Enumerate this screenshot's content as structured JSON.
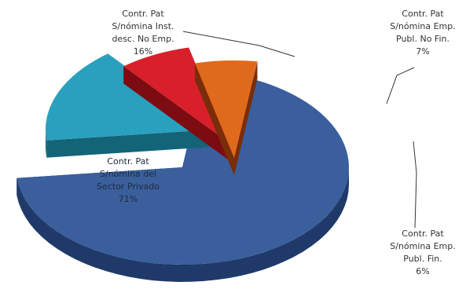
{
  "chart_data": {
    "type": "pie",
    "style": "3d-exploded",
    "title": "",
    "slices": [
      {
        "label_lines": [
          "Contr. Pat",
          "S/nómina del",
          "Sector Privado"
        ],
        "value": 71,
        "value_text": "71%",
        "color": "#3a5f9c",
        "side": "#1f3a69"
      },
      {
        "label_lines": [
          "Contr. Pat",
          "S/nómina Inst.",
          "desc. No Emp."
        ],
        "value": 16,
        "value_text": "16%",
        "color": "#2aa0bf",
        "side": "#146478"
      },
      {
        "label_lines": [
          "Contr. Pat",
          "S/nómina Emp.",
          "Publ. No Fin."
        ],
        "value": 7,
        "value_text": "7%",
        "color": "#d8202b",
        "side": "#7d0b12"
      },
      {
        "label_lines": [
          "Contr. Pat",
          "S/nómina Emp.",
          "Publ. Fin."
        ],
        "value": 6,
        "value_text": "6%",
        "color": "#e06a1c",
        "side": "#7a2d08"
      }
    ]
  }
}
